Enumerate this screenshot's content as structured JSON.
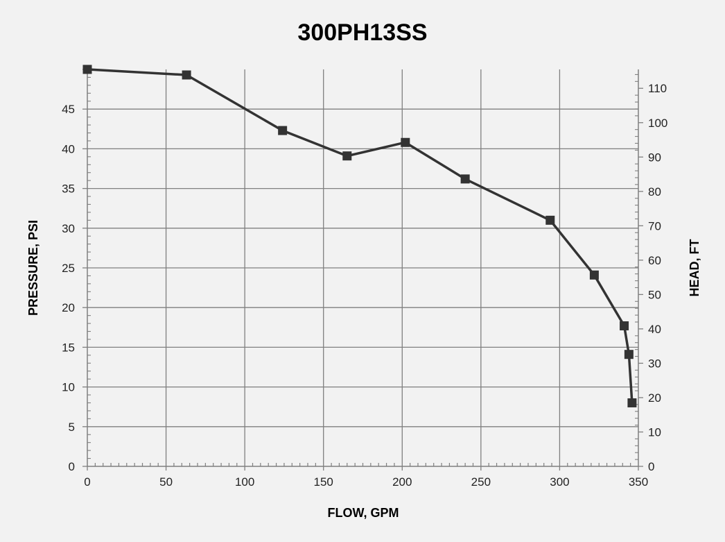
{
  "chart_data": {
    "type": "line",
    "title": "300PH13SS",
    "xlabel": "FLOW, GPM",
    "ylabel": "PRESSURE, PSI",
    "y2label": "HEAD, FT",
    "xlim": [
      0,
      350
    ],
    "ylim": [
      0,
      50
    ],
    "y2lim": [
      0,
      115.5
    ],
    "x_ticks": [
      0,
      50,
      100,
      150,
      200,
      250,
      300,
      350
    ],
    "y_ticks": [
      0,
      5,
      10,
      15,
      20,
      25,
      30,
      35,
      40,
      45
    ],
    "y2_ticks": [
      0,
      10,
      20,
      30,
      40,
      50,
      60,
      70,
      80,
      90,
      100,
      110
    ],
    "grid": true,
    "legend": "none",
    "line_color": "#333333",
    "grid_color": "#7f7f7f",
    "background": "#f2f2f2",
    "series": [
      {
        "x": [
          0,
          63,
          124,
          165,
          202,
          240,
          294,
          322,
          341,
          344,
          346
        ],
        "y": [
          50,
          49.3,
          42.3,
          39.1,
          40.8,
          36.2,
          31.0,
          24.1,
          17.7,
          14.1,
          8.0
        ]
      }
    ]
  }
}
